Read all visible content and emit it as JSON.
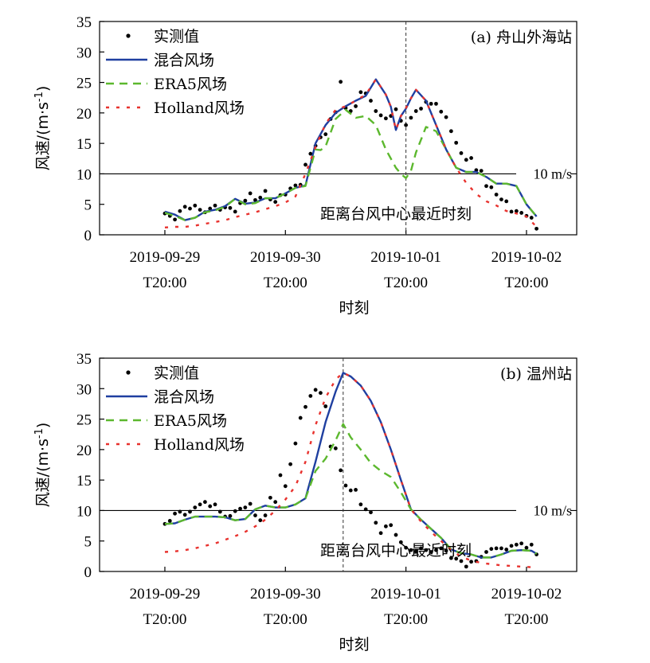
{
  "chart_data": [
    {
      "type": "line",
      "title": "(a) 舟山外海站",
      "xlabel": "时刻",
      "ylabel": "风速/(m·s-1)",
      "ylim": [
        0,
        35
      ],
      "yticks": [
        "0",
        "5",
        "10",
        "15",
        "20",
        "25",
        "30",
        "35"
      ],
      "x_unit": "hours since 2019-09-29T20:00",
      "xlim": [
        -13,
        82
      ],
      "xticks": [
        {
          "value": 0,
          "line1": "2019-09-29",
          "line2": "T20:00"
        },
        {
          "value": 24,
          "line1": "2019-09-30",
          "line2": "T20:00"
        },
        {
          "value": 48,
          "line1": "2019-10-01",
          "line2": "T20:00"
        },
        {
          "value": 72,
          "line1": "2019-10-02",
          "line2": "T20:00"
        }
      ],
      "reference_line": {
        "y": 10,
        "label": "10 m/s"
      },
      "closest_time": {
        "x": 48,
        "label": "距离台风中心最近时刻"
      },
      "legend_position": "top-left",
      "series": [
        {
          "name": "实测值",
          "style": "dots",
          "color": "#000000",
          "x": [
            0,
            1,
            2,
            3,
            4,
            5,
            6,
            7,
            8,
            9,
            10,
            11,
            12,
            13,
            14,
            15,
            16,
            17,
            18,
            19,
            20,
            21,
            22,
            23,
            24,
            25,
            26,
            27,
            28,
            29,
            30,
            31,
            32,
            33,
            34,
            35,
            36,
            37,
            38,
            39,
            40,
            41,
            42,
            43,
            44,
            45,
            46,
            47,
            48,
            49,
            50,
            51,
            52,
            53,
            54,
            55,
            56,
            57,
            58,
            59,
            60,
            61,
            62,
            63,
            64,
            65,
            66,
            67,
            68,
            69,
            70,
            71,
            72,
            73,
            74
          ],
          "y": [
            3.5,
            3.1,
            2.5,
            3.9,
            4.6,
            4.3,
            4.8,
            4.1,
            3.7,
            4.3,
            4.8,
            4.1,
            4.5,
            4.4,
            3.8,
            5.2,
            5.6,
            6.8,
            5.7,
            6.1,
            7.2,
            5.8,
            5.4,
            6.5,
            6.6,
            7.6,
            8.1,
            8.2,
            11.5,
            13.3,
            14.6,
            16.0,
            16.5,
            19.0,
            20.1,
            25.1,
            20.8,
            20.3,
            21.1,
            23.4,
            23.2,
            22.0,
            20.3,
            19.6,
            19.1,
            19.5,
            20.6,
            18.7,
            18.0,
            19.2,
            20.3,
            20.7,
            21.8,
            21.5,
            21.5,
            20.2,
            19.3,
            17.0,
            15.1,
            13.4,
            12.3,
            12.6,
            10.6,
            10.5,
            8.0,
            7.8,
            6.6,
            5.8,
            5.5,
            3.8,
            3.9,
            3.6,
            3.1,
            2.8,
            1.0
          ]
        },
        {
          "name": "混合风场",
          "style": "solid",
          "color": "#1f3fa0",
          "x": [
            0,
            2,
            4,
            6,
            8,
            10,
            12,
            14,
            16,
            18,
            20,
            22,
            24,
            26,
            28,
            30,
            32,
            34,
            36,
            38,
            40,
            42,
            44,
            45,
            46,
            47,
            48,
            49,
            50,
            52,
            54,
            56,
            58,
            60,
            62,
            64,
            66,
            68,
            70,
            72,
            74
          ],
          "y": [
            3.8,
            3.3,
            2.4,
            2.8,
            3.8,
            4.1,
            4.7,
            5.9,
            5.1,
            5.3,
            6.0,
            6.0,
            6.8,
            7.7,
            8.1,
            15.0,
            18.0,
            20.0,
            21.1,
            22.0,
            22.8,
            25.5,
            23.0,
            21.0,
            17.2,
            19.5,
            20.7,
            22.4,
            23.8,
            22.0,
            18.0,
            14.0,
            11.0,
            10.3,
            10.3,
            9.5,
            8.4,
            8.4,
            8.0,
            5.0,
            3.0
          ]
        },
        {
          "name": "ERA5风场",
          "style": "dashed",
          "color": "#5cb82e",
          "x": [
            0,
            2,
            4,
            6,
            8,
            10,
            12,
            14,
            16,
            18,
            20,
            22,
            24,
            26,
            28,
            30,
            31,
            32,
            34,
            36,
            38,
            40,
            42,
            44,
            46,
            47,
            48,
            49,
            50,
            52,
            54,
            56,
            58,
            60,
            62,
            64,
            66,
            68,
            70,
            72,
            74
          ],
          "y": [
            3.6,
            3.1,
            2.4,
            2.8,
            3.7,
            4.0,
            4.6,
            5.9,
            5.0,
            5.2,
            6.0,
            6.0,
            6.8,
            7.7,
            8.0,
            14.0,
            13.9,
            14.5,
            19.0,
            20.5,
            19.2,
            19.5,
            18.0,
            14.0,
            11.0,
            10.0,
            9.3,
            10.5,
            13.5,
            17.7,
            17.0,
            14.0,
            11.0,
            10.3,
            10.3,
            9.5,
            8.4,
            8.4,
            8.0,
            5.0,
            3.0
          ]
        },
        {
          "name": "Holland风场",
          "style": "dotted",
          "color": "#e8322e",
          "x": [
            0,
            2,
            4,
            6,
            8,
            10,
            12,
            14,
            16,
            18,
            20,
            22,
            24,
            26,
            28,
            30,
            32,
            34,
            36,
            38,
            40,
            42,
            44,
            45,
            46,
            47,
            48,
            49,
            50,
            52,
            54,
            56,
            58,
            60,
            62,
            64,
            66,
            68,
            70,
            72,
            74
          ],
          "y": [
            1.2,
            1.3,
            1.3,
            1.5,
            1.8,
            2.1,
            2.4,
            2.9,
            3.3,
            3.7,
            4.2,
            4.7,
            5.3,
            6.3,
            10.0,
            14.4,
            18.2,
            20.5,
            21.1,
            22.0,
            23.0,
            25.5,
            23.0,
            21.0,
            17.2,
            19.5,
            20.8,
            22.4,
            23.8,
            22.0,
            18.0,
            14.0,
            11.0,
            8.5,
            6.7,
            5.5,
            4.8,
            3.9,
            3.5,
            3.0,
            1.3
          ]
        }
      ]
    },
    {
      "type": "line",
      "title": "(b) 温州站",
      "xlabel": "时刻",
      "ylabel": "风速/(m·s-1)",
      "ylim": [
        0,
        35
      ],
      "yticks": [
        "0",
        "5",
        "10",
        "15",
        "20",
        "25",
        "30",
        "35"
      ],
      "x_unit": "hours since 2019-09-29T20:00",
      "xlim": [
        -13,
        82
      ],
      "xticks": [
        {
          "value": 0,
          "line1": "2019-09-29",
          "line2": "T20:00"
        },
        {
          "value": 24,
          "line1": "2019-09-30",
          "line2": "T20:00"
        },
        {
          "value": 48,
          "line1": "2019-10-01",
          "line2": "T20:00"
        },
        {
          "value": 72,
          "line1": "2019-10-02",
          "line2": "T20:00"
        }
      ],
      "reference_line": {
        "y": 10,
        "label": "10 m/s"
      },
      "closest_time": {
        "x": 35.5,
        "label": "距离台风中心最近时刻"
      },
      "legend_position": "top-left",
      "series": [
        {
          "name": "实测值",
          "style": "dots",
          "color": "#000000",
          "x": [
            0,
            1,
            2,
            3,
            4,
            5,
            6,
            7,
            8,
            9,
            10,
            11,
            12,
            13,
            14,
            15,
            16,
            17,
            18,
            19,
            20,
            21,
            22,
            23,
            24,
            25,
            26,
            27,
            28,
            29,
            30,
            31,
            32,
            33,
            34,
            35,
            36,
            37,
            38,
            39,
            40,
            41,
            42,
            43,
            44,
            45,
            46,
            47,
            48,
            49,
            50,
            51,
            52,
            53,
            54,
            55,
            56,
            57,
            58,
            59,
            60,
            61,
            62,
            63,
            64,
            65,
            66,
            67,
            68,
            69,
            70,
            71,
            72,
            73,
            74
          ],
          "y": [
            7.8,
            8.3,
            9.5,
            9.8,
            9.3,
            9.8,
            10.5,
            11.0,
            11.4,
            10.7,
            11.0,
            9.8,
            9.0,
            9.1,
            9.9,
            10.3,
            10.5,
            11.1,
            9.2,
            8.4,
            9.2,
            12.1,
            11.4,
            15.8,
            14.0,
            17.6,
            21.0,
            25.2,
            27.0,
            28.8,
            29.8,
            29.3,
            27.1,
            20.5,
            20.2,
            16.6,
            14.1,
            13.3,
            13.4,
            11.0,
            10.2,
            9.7,
            8.0,
            6.3,
            7.4,
            7.6,
            6.0,
            4.8,
            3.9,
            3.5,
            3.3,
            3.8,
            3.5,
            3.2,
            3.5,
            3.8,
            3.4,
            2.2,
            2.1,
            1.7,
            0.8,
            1.6,
            1.7,
            2.4,
            3.2,
            3.7,
            3.8,
            3.8,
            3.6,
            4.2,
            4.4,
            4.6,
            3.9,
            4.4,
            2.8
          ]
        },
        {
          "name": "混合风场",
          "style": "solid",
          "color": "#1f3fa0",
          "x": [
            0,
            2,
            4,
            6,
            8,
            10,
            12,
            14,
            16,
            18,
            20,
            22,
            24,
            26,
            28,
            30,
            32,
            34,
            35.5,
            37,
            39,
            41,
            43,
            45,
            47,
            49,
            51,
            53,
            55,
            57,
            59,
            61,
            63,
            65,
            67,
            69,
            71,
            73,
            74
          ],
          "y": [
            7.8,
            7.9,
            8.5,
            9.0,
            9.0,
            9.0,
            8.9,
            8.4,
            8.6,
            10.2,
            10.8,
            10.5,
            10.5,
            11.0,
            12.0,
            18.0,
            24.5,
            29.5,
            32.6,
            32.0,
            30.5,
            28.0,
            24.5,
            20.0,
            15.0,
            10.2,
            8.5,
            7.0,
            5.5,
            3.6,
            3.0,
            2.8,
            2.3,
            2.3,
            2.8,
            3.4,
            3.5,
            3.4,
            2.9
          ]
        },
        {
          "name": "ERA5风场",
          "style": "dashed",
          "color": "#5cb82e",
          "x": [
            0,
            2,
            4,
            6,
            8,
            10,
            12,
            14,
            16,
            18,
            20,
            22,
            24,
            26,
            28,
            30,
            32,
            34,
            35.5,
            37,
            39,
            41,
            43,
            45,
            47,
            49,
            51,
            53,
            55,
            57,
            59,
            61,
            63,
            65,
            67,
            69,
            71,
            73,
            74
          ],
          "y": [
            7.8,
            7.9,
            8.5,
            9.0,
            9.0,
            9.0,
            8.9,
            8.4,
            8.6,
            10.2,
            10.8,
            10.5,
            10.5,
            11.0,
            12.0,
            16.5,
            18.5,
            21.5,
            24.2,
            22.0,
            20.0,
            17.8,
            16.5,
            15.5,
            13.0,
            10.2,
            8.5,
            7.0,
            5.5,
            3.6,
            3.0,
            2.8,
            2.3,
            2.3,
            2.8,
            3.4,
            3.5,
            3.4,
            2.9
          ]
        },
        {
          "name": "Holland风场",
          "style": "dotted",
          "color": "#e8322e",
          "x": [
            0,
            2,
            4,
            6,
            8,
            10,
            12,
            14,
            16,
            18,
            20,
            22,
            24,
            26,
            28,
            30,
            32,
            34,
            35.5,
            37,
            39,
            41,
            43,
            45,
            47,
            49,
            51,
            53,
            55,
            57,
            59,
            61,
            63,
            65,
            67,
            69,
            71,
            73,
            74
          ],
          "y": [
            3.2,
            3.3,
            3.5,
            3.8,
            4.2,
            4.6,
            5.2,
            5.8,
            6.5,
            7.4,
            8.5,
            10.0,
            11.8,
            14.0,
            18.0,
            24.0,
            28.5,
            31.5,
            32.6,
            32.0,
            30.5,
            28.0,
            24.5,
            20.0,
            15.0,
            10.2,
            8.2,
            6.5,
            5.0,
            3.5,
            2.4,
            1.8,
            1.4,
            1.2,
            1.0,
            0.9,
            0.8,
            0.7,
            0.6
          ]
        }
      ]
    }
  ]
}
